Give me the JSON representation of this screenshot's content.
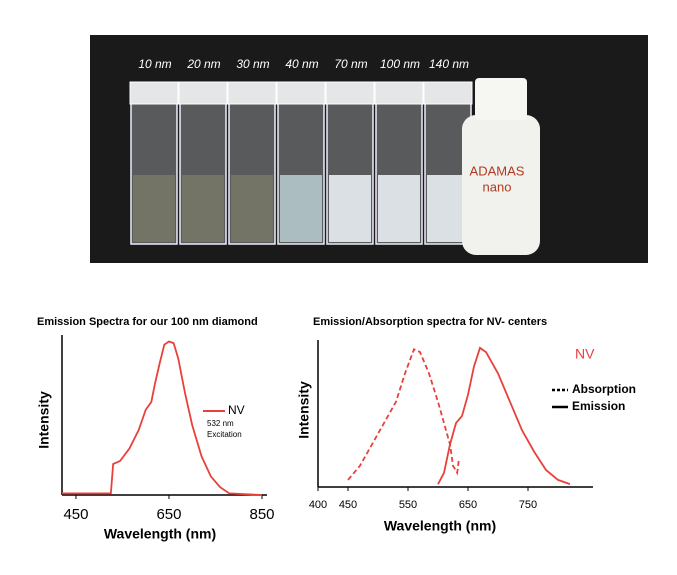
{
  "photo": {
    "labels": [
      "10 nm",
      "20 nm",
      "30 nm",
      "40 nm",
      "70 nm",
      "100 nm",
      "140 nm"
    ],
    "bottle_brand": "ADAMAS",
    "bottle_sub": "nano"
  },
  "chart_data": [
    {
      "type": "line",
      "title": "Emission Spectra for our 100 nm diamond",
      "xlabel": "Wavelength (nm)",
      "ylabel": "Intensity",
      "xlim": [
        420,
        850
      ],
      "xticks": [
        450,
        650,
        850
      ],
      "ylim": [
        0,
        1
      ],
      "annotations": [
        "532 nm",
        "Excitation"
      ],
      "x": [
        420,
        525,
        530,
        545,
        565,
        585,
        600,
        612,
        620,
        630,
        640,
        650,
        660,
        670,
        685,
        700,
        720,
        740,
        760,
        780,
        850
      ],
      "series": [
        {
          "name": "NV",
          "color": "#e8413b",
          "dash": false,
          "values": [
            0.01,
            0.01,
            0.2,
            0.22,
            0.3,
            0.42,
            0.55,
            0.6,
            0.72,
            0.85,
            0.97,
            0.99,
            0.98,
            0.88,
            0.65,
            0.45,
            0.25,
            0.12,
            0.05,
            0.01,
            0.0
          ]
        }
      ]
    },
    {
      "type": "line",
      "title": "Emission/Absorption  spectra for NV- centers",
      "xlabel": "Wavelength (nm)",
      "ylabel": "Intensity",
      "xlim": [
        400,
        850
      ],
      "xticks": [
        400,
        450,
        550,
        650,
        750
      ],
      "ylim": [
        0,
        1
      ],
      "legend_title": "NV",
      "series": [
        {
          "name": "Absorption",
          "color": "#e8413b",
          "dash": true,
          "x": [
            450,
            470,
            490,
            510,
            530,
            545,
            560,
            570,
            585,
            600,
            610,
            620,
            625,
            632,
            635
          ],
          "values": [
            0.05,
            0.15,
            0.3,
            0.45,
            0.6,
            0.8,
            0.97,
            0.95,
            0.8,
            0.6,
            0.45,
            0.3,
            0.15,
            0.1,
            0.2
          ]
        },
        {
          "name": "Emission",
          "color": "#e8413b",
          "dash": false,
          "x": [
            600,
            610,
            620,
            630,
            640,
            650,
            660,
            670,
            680,
            700,
            720,
            740,
            760,
            780,
            800,
            820
          ],
          "values": [
            0.02,
            0.1,
            0.3,
            0.45,
            0.5,
            0.65,
            0.85,
            0.98,
            0.95,
            0.8,
            0.6,
            0.4,
            0.25,
            0.12,
            0.05,
            0.02
          ]
        }
      ]
    }
  ]
}
